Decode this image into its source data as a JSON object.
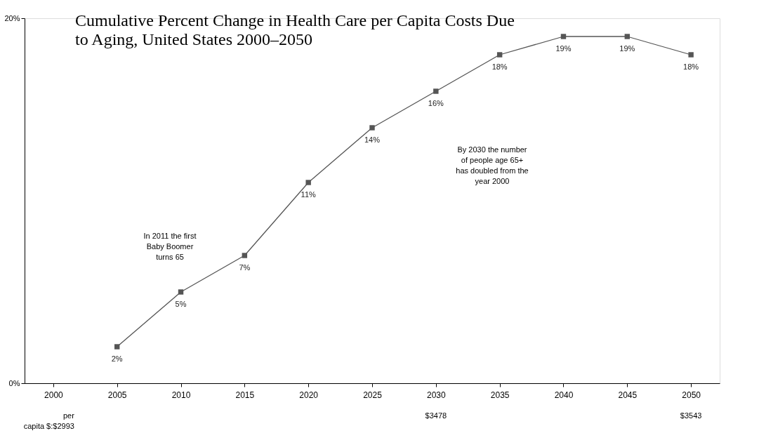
{
  "chart_data": {
    "type": "line",
    "title": "Cumulative Percent Change in Health Care per Capita Costs Due\nto Aging, United States 2000–2050",
    "categories": [
      "2000",
      "2005",
      "2010",
      "2015",
      "2020",
      "2025",
      "2030",
      "2035",
      "2040",
      "2045",
      "2050"
    ],
    "values": [
      null,
      2,
      5,
      7,
      11,
      14,
      16,
      18,
      19,
      19,
      18
    ],
    "value_labels": [
      null,
      "2%",
      "5%",
      "7%",
      "11%",
      "14%",
      "16%",
      "18%",
      "19%",
      "19%",
      "18%"
    ],
    "color": "#555555",
    "marker": "square",
    "line_style": "solid",
    "ylim": [
      0,
      20
    ],
    "yticks": [
      {
        "value": 0,
        "label": "0%"
      },
      {
        "value": 20,
        "label": "20%"
      }
    ],
    "annotations": [
      "In 2011 the first\nBaby Boomer\nturns 65",
      "By 2030 the number\nof people age 65+\nhas doubled from the\nyear 2000",
      "per\ncapita $:$2993",
      "$3478",
      "$3543"
    ]
  }
}
